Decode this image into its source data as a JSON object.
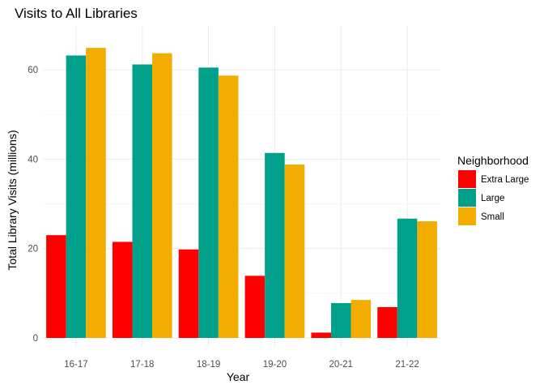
{
  "chart_data": {
    "type": "bar",
    "title": "Visits to All Libraries",
    "xlabel": "Year",
    "ylabel": "Total Library Visits (millions)",
    "categories": [
      "16-17",
      "17-18",
      "18-19",
      "19-20",
      "20-21",
      "21-22"
    ],
    "ylim": [
      0,
      68
    ],
    "y_ticks": [
      0,
      20,
      40,
      60
    ],
    "grid": true,
    "legend_title": "Neighborhood",
    "legend_position": "right",
    "series": [
      {
        "name": "Extra Large",
        "color": "#ff0000",
        "values": [
          23.0,
          21.5,
          19.8,
          13.9,
          1.2,
          6.9
        ]
      },
      {
        "name": "Large",
        "color": "#00a08a",
        "values": [
          63.2,
          61.2,
          60.5,
          41.4,
          7.8,
          26.7
        ]
      },
      {
        "name": "Small",
        "color": "#f2ad00",
        "values": [
          64.9,
          63.7,
          58.7,
          38.8,
          8.5,
          26.1
        ]
      }
    ]
  }
}
